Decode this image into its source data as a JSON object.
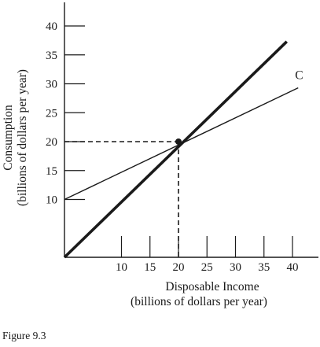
{
  "chart_data": {
    "type": "line",
    "xlabel": [
      "Disposable Income",
      "(billions of dollars per year)"
    ],
    "ylabel": [
      "Consumption",
      "(billions of dollars per year)"
    ],
    "x_ticks": [
      10,
      15,
      20,
      25,
      30,
      35,
      40
    ],
    "y_ticks": [
      10,
      15,
      20,
      25,
      30,
      35,
      40
    ],
    "xlim": [
      0,
      41
    ],
    "ylim": [
      0,
      41
    ],
    "series": [
      {
        "name": "",
        "style": "thick",
        "points": [
          [
            0,
            0
          ],
          [
            39,
            37.3
          ]
        ]
      },
      {
        "name": "C",
        "style": "thin",
        "points": [
          [
            0,
            10
          ],
          [
            41,
            29.3
          ]
        ]
      }
    ],
    "reference_point": {
      "x": 20,
      "y": 20
    },
    "reference_lines": "dashed",
    "grid": false
  },
  "caption": "Figure 9.3",
  "colors": {
    "ink": "#1a1a1a",
    "background": "#ffffff"
  }
}
